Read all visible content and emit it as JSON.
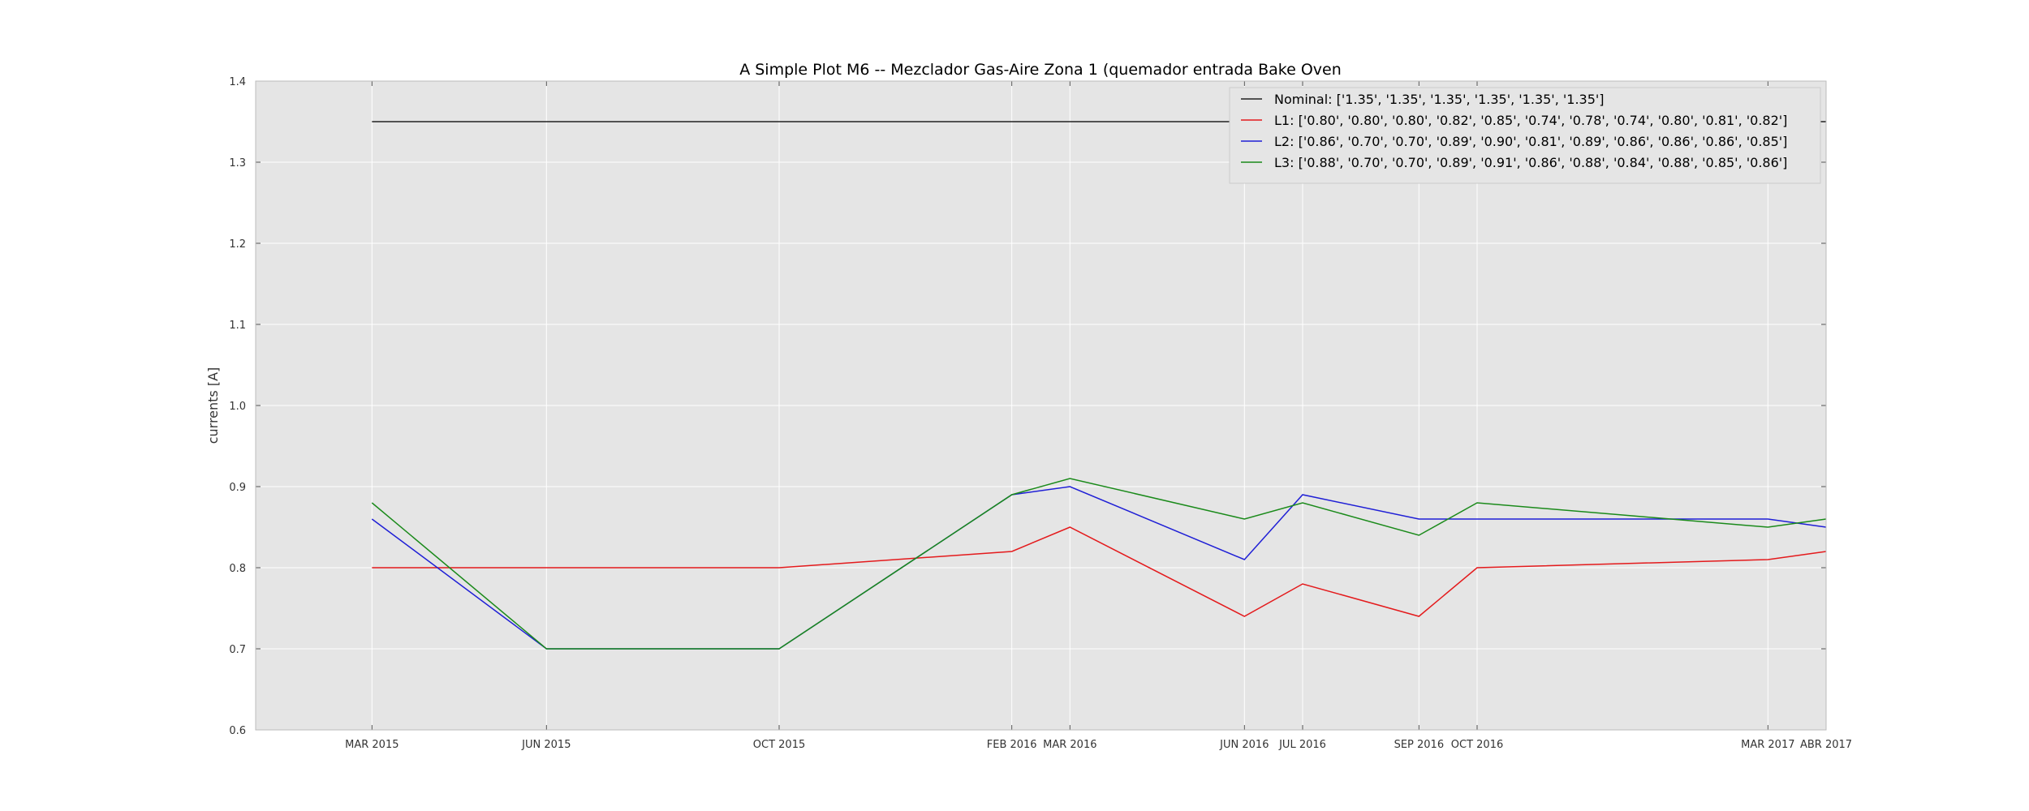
{
  "chart_data": {
    "type": "line",
    "title": "A Simple Plot M6 -- Mezclador Gas-Aire Zona 1 (quemador entrada Bake Oven",
    "xlabel": "",
    "ylabel": "currents [A]",
    "ylim": [
      0.6,
      1.4
    ],
    "yticks": [
      "0.6",
      "0.7",
      "0.8",
      "0.9",
      "1.0",
      "1.1",
      "1.2",
      "1.3",
      "1.4"
    ],
    "xlim": [
      "2015-01",
      "2017-04"
    ],
    "x": [
      "2015-03",
      "2015-06",
      "2015-10",
      "2016-02",
      "2016-03",
      "2016-06",
      "2016-07",
      "2016-09",
      "2016-10",
      "2017-03",
      "2017-04"
    ],
    "xtick_labels": [
      "MAR 2015",
      "JUN 2015",
      "OCT 2015",
      "FEB 2016",
      "MAR 2016",
      "JUN 2016",
      "JUL 2016",
      "SEP 2016",
      "OCT 2016",
      "MAR 2017",
      "ABR 2017"
    ],
    "grid": true,
    "legend_position": "top-right",
    "series": [
      {
        "legend_label": "Nominal:  ['1.35', '1.35', '1.35', '1.35', '1.35', '1.35']",
        "color": "#222222",
        "values": [
          1.35,
          1.35,
          1.35,
          1.35,
          1.35,
          1.35,
          1.35,
          1.35,
          1.35,
          1.35,
          1.35
        ]
      },
      {
        "legend_label": "L1: ['0.80', '0.80', '0.80', '0.82', '0.85', '0.74', '0.78', '0.74', '0.80', '0.81', '0.82']",
        "color": "#e41a1c",
        "values": [
          0.8,
          0.8,
          0.8,
          0.82,
          0.85,
          0.74,
          0.78,
          0.74,
          0.8,
          0.81,
          0.82
        ]
      },
      {
        "legend_label": "L2:  ['0.86', '0.70', '0.70', '0.89', '0.90', '0.81', '0.89', '0.86', '0.86', '0.86', '0.85']",
        "color": "#1f1fd6",
        "values": [
          0.86,
          0.7,
          0.7,
          0.89,
          0.9,
          0.81,
          0.89,
          0.86,
          0.86,
          0.86,
          0.85
        ]
      },
      {
        "legend_label": "L3: ['0.88', '0.70', '0.70', '0.89', '0.91', '0.86', '0.88', '0.84', '0.88', '0.85', '0.86']",
        "color": "#1a8a1a",
        "values": [
          0.88,
          0.7,
          0.7,
          0.89,
          0.91,
          0.86,
          0.88,
          0.84,
          0.88,
          0.85,
          0.86
        ]
      }
    ]
  }
}
